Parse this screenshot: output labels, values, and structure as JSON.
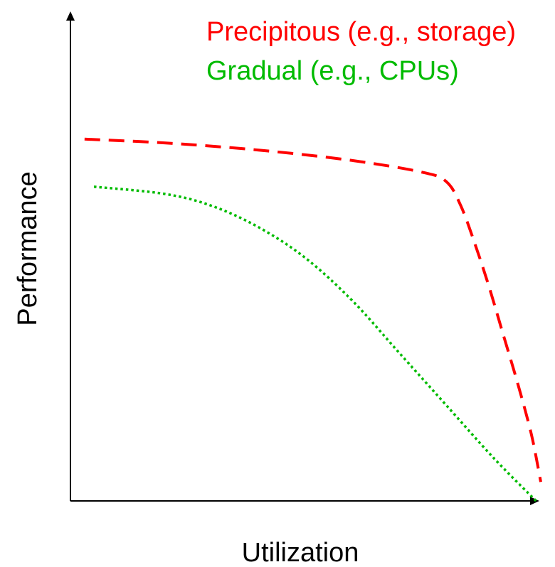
{
  "chart_data": {
    "type": "line",
    "title": "",
    "xlabel": "Utilization",
    "ylabel": "Performance",
    "xlim": [
      0,
      100
    ],
    "ylim": [
      0,
      100
    ],
    "grid": false,
    "ticks": false,
    "legend": {
      "placement": "top-right"
    },
    "series": [
      {
        "name": "Precipitous (e.g., storage)",
        "color": "#ff0000",
        "style": "dashed",
        "points": [
          [
            3,
            76
          ],
          [
            20,
            75.2
          ],
          [
            40,
            73.7
          ],
          [
            60,
            71.5
          ],
          [
            75,
            69
          ],
          [
            80,
            67
          ],
          [
            83,
            62
          ],
          [
            86,
            54
          ],
          [
            89,
            45
          ],
          [
            92,
            35
          ],
          [
            95,
            25
          ],
          [
            98,
            14
          ],
          [
            100,
            4
          ]
        ]
      },
      {
        "name": "Gradual (e.g., CPUs)",
        "color": "#00bb00",
        "style": "dotted",
        "points": [
          [
            5,
            66
          ],
          [
            20,
            64.5
          ],
          [
            30,
            62
          ],
          [
            40,
            57.5
          ],
          [
            50,
            51
          ],
          [
            60,
            42
          ],
          [
            70,
            31
          ],
          [
            80,
            20
          ],
          [
            90,
            9
          ],
          [
            99,
            0
          ]
        ]
      }
    ]
  }
}
